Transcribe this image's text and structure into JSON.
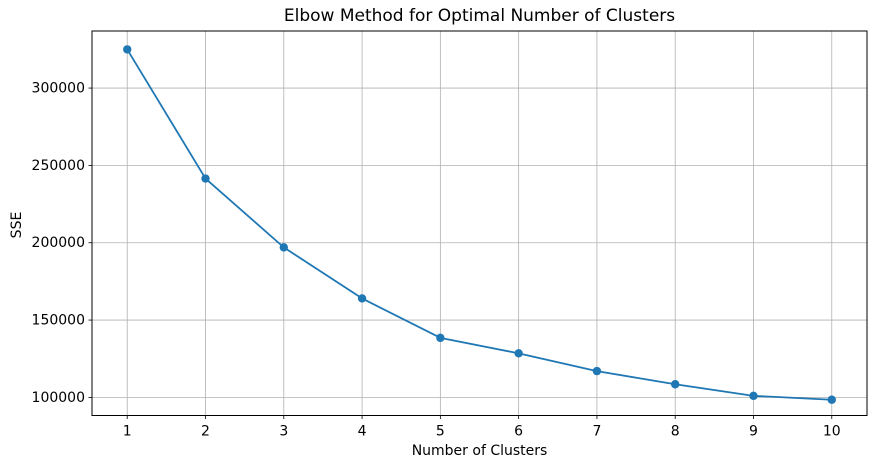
{
  "chart_data": {
    "type": "line",
    "title": "Elbow Method for Optimal Number of Clusters",
    "xlabel": "Number of Clusters",
    "ylabel": "SSE",
    "x": [
      1,
      2,
      3,
      4,
      5,
      6,
      7,
      8,
      9,
      10
    ],
    "y": [
      325000,
      241500,
      197000,
      164000,
      138500,
      128500,
      117000,
      108500,
      101000,
      98500
    ],
    "xticks": [
      1,
      2,
      3,
      4,
      5,
      6,
      7,
      8,
      9,
      10
    ],
    "yticks": [
      100000,
      150000,
      200000,
      250000,
      300000
    ],
    "xlim": [
      0.55,
      10.45
    ],
    "ylim": [
      88300,
      336900
    ],
    "grid": true,
    "legend": "none",
    "marker": "o",
    "line_color": "#1f77b4"
  },
  "style": {
    "grid_color": "#b0b0b0",
    "spine_color": "#000000",
    "tick_color": "#000000",
    "text_color": "#000000",
    "background_color": "#ffffff"
  }
}
